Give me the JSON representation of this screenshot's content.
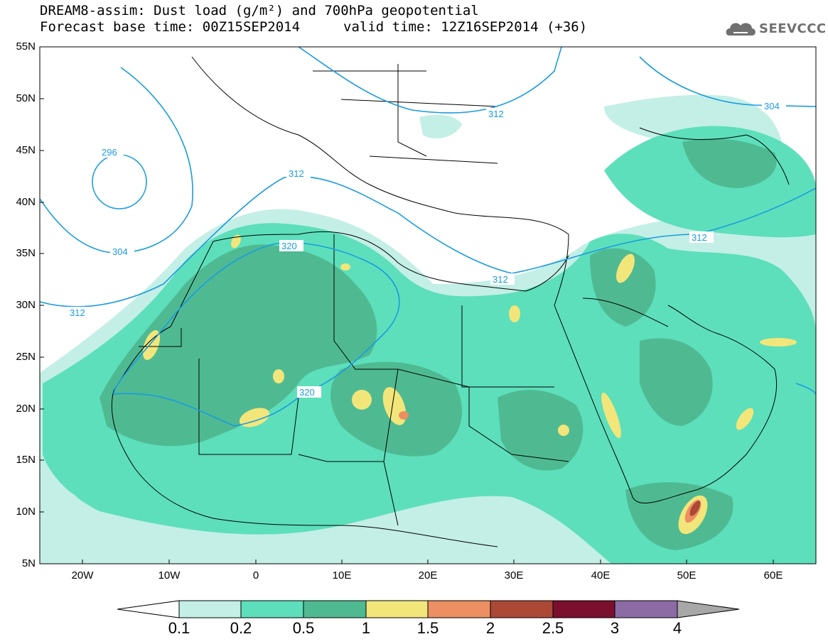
{
  "header": {
    "title": "DREAM8-assim: Dust load (g/m²) and 700hPa geopotential",
    "base_time": "Forecast base time: 00Z15SEP2014",
    "valid_time": "valid time: 12Z16SEP2014 (+36)"
  },
  "logo": {
    "text": "SEEVCCC",
    "icon": "cloud-icon"
  },
  "map": {
    "lat_labels": [
      "55N",
      "50N",
      "45N",
      "40N",
      "35N",
      "30N",
      "25N",
      "20N",
      "15N",
      "10N",
      "5N"
    ],
    "lon_labels": [
      "20W",
      "10W",
      "0",
      "10E",
      "20E",
      "30E",
      "40E",
      "50E",
      "60E"
    ],
    "contour_labels": [
      "296",
      "304",
      "312",
      "312",
      "320",
      "320",
      "312",
      "312",
      "304",
      "312"
    ]
  },
  "colorbar": {
    "labels": [
      "0.1",
      "0.2",
      "0.5",
      "1",
      "1.5",
      "2",
      "2.5",
      "3",
      "4"
    ],
    "colors": [
      "#c3efe6",
      "#5ddfbb",
      "#4fba92",
      "#f2e67a",
      "#ec8f62",
      "#ab4836",
      "#7a0f2e",
      "#8c6aa4",
      "#a8a8a8"
    ]
  },
  "styles": {
    "contour_color": "#1a9be0",
    "dust_low": "#c3efe6",
    "dust_mid": "#5ddfbb",
    "dust_high": "#4fba92"
  }
}
